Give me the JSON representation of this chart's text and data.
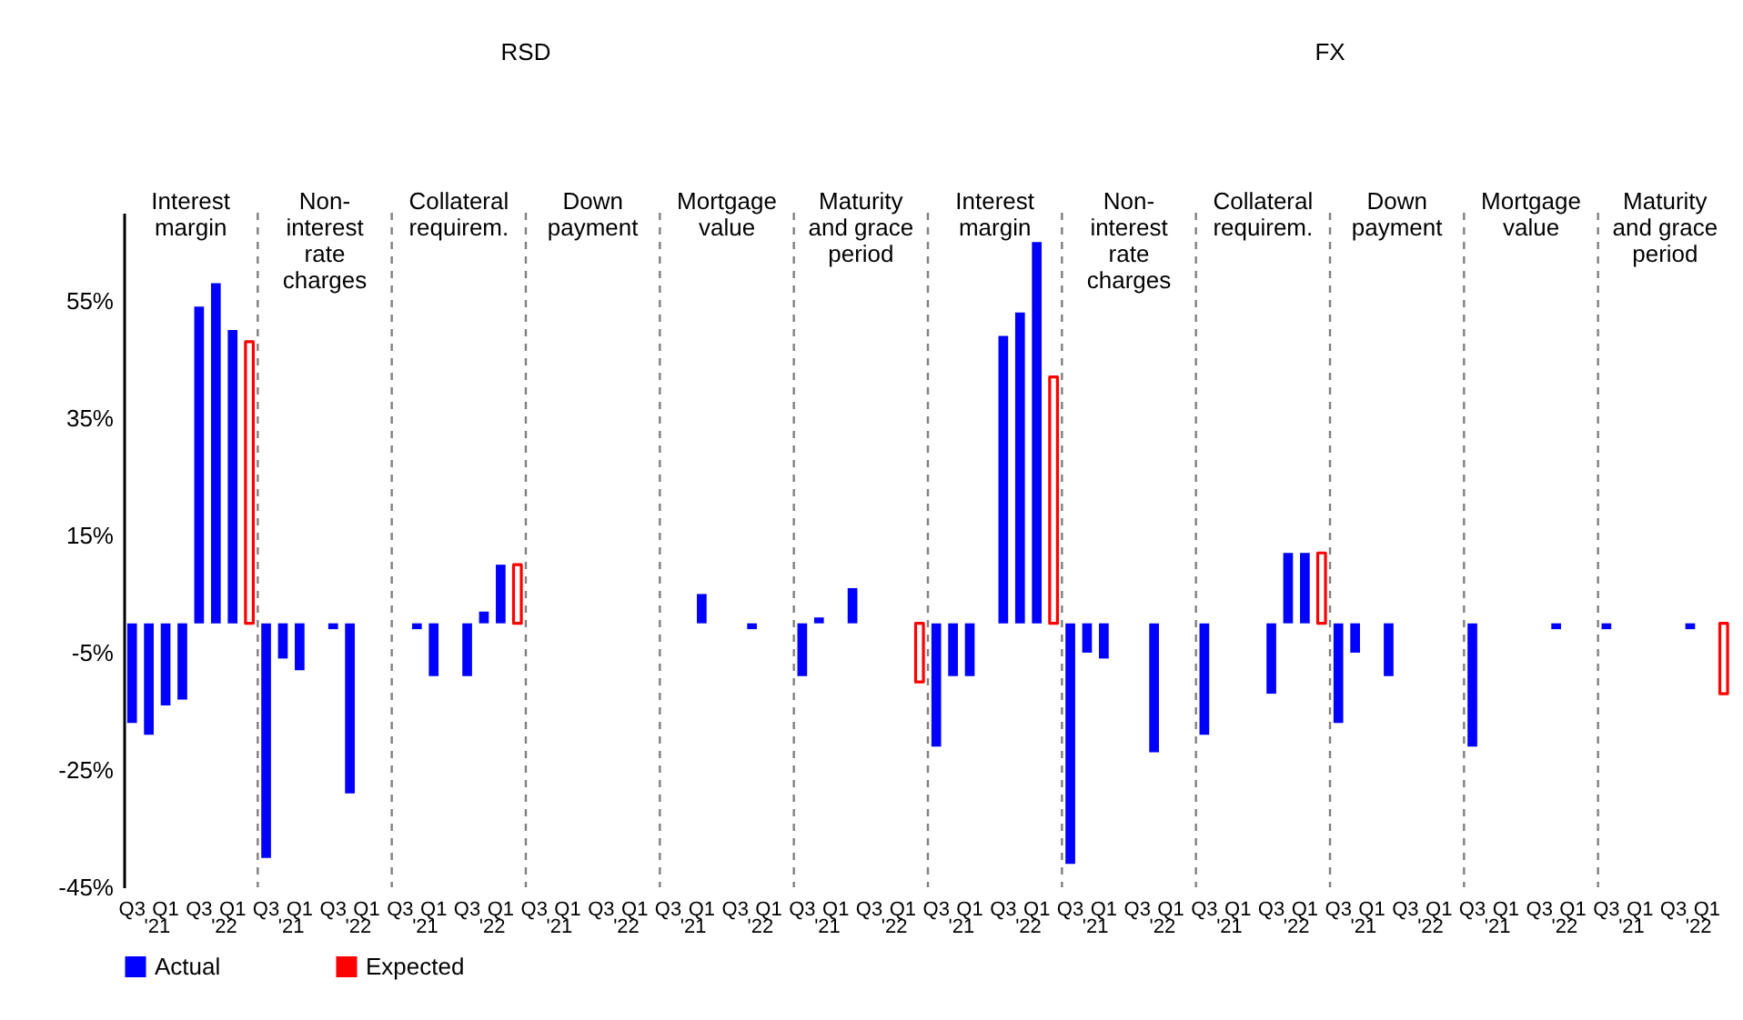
{
  "chart_data": {
    "type": "bar",
    "categories": [
      "Q3",
      null,
      "Q1",
      null,
      "Q3",
      null,
      "Q1",
      null,
      "Q3",
      null,
      "Q1",
      null,
      "Q3",
      null,
      "Q1",
      null,
      "Q3",
      null,
      "Q1",
      null,
      "Q3",
      null,
      "Q1",
      null,
      "Q3",
      null,
      "Q1",
      null,
      "Q3",
      null,
      "Q1",
      null,
      "Q3",
      null,
      "Q1",
      null,
      "Q3",
      null,
      "Q1",
      null,
      "Q3",
      null,
      "Q1",
      null,
      "Q3",
      null,
      "Q1",
      null,
      "Q3",
      null,
      "Q1",
      null,
      "Q3",
      null,
      "Q1",
      null,
      "Q3",
      null,
      "Q1",
      null,
      "Q3",
      null,
      "Q1",
      null,
      "Q3",
      null,
      "Q1",
      null,
      "Q3",
      null,
      "Q1",
      null,
      "Q3",
      null,
      "Q1",
      null,
      "Q3",
      null,
      "Q1",
      null,
      "Q3",
      null,
      "Q1",
      null,
      "Q3",
      null,
      "Q1",
      null,
      "Q3",
      null,
      "Q1",
      null,
      "Q3",
      null,
      "Q1",
      null
    ],
    "series": [
      {
        "name": "Actual",
        "color": "#0000ff",
        "values": [
          -17,
          -19,
          -14,
          -13,
          54,
          58,
          50,
          null,
          -40,
          -6,
          -8,
          null,
          -1,
          -29,
          null,
          null,
          null,
          -1,
          -9,
          null,
          -9,
          2,
          10,
          null,
          null,
          null,
          null,
          null,
          null,
          null,
          null,
          null,
          null,
          null,
          5,
          null,
          null,
          -1,
          null,
          null,
          -9,
          1,
          null,
          6,
          null,
          null,
          null,
          null,
          -21,
          -9,
          -9,
          null,
          49,
          53,
          65,
          null,
          -41,
          -5,
          -6,
          null,
          null,
          -22,
          null,
          null,
          -19,
          null,
          null,
          null,
          -12,
          12,
          12,
          null,
          -17,
          -5,
          null,
          -9,
          null,
          null,
          null,
          null,
          -21,
          null,
          null,
          null,
          null,
          -1,
          null,
          null,
          -1,
          null,
          null,
          null,
          null,
          -1,
          null,
          null
        ]
      },
      {
        "name": "Expected",
        "color": "#ff0000",
        "values": [
          null,
          null,
          null,
          null,
          null,
          null,
          null,
          48,
          null,
          null,
          null,
          null,
          null,
          null,
          null,
          null,
          null,
          null,
          null,
          null,
          null,
          null,
          null,
          10,
          null,
          null,
          null,
          null,
          null,
          null,
          null,
          null,
          null,
          null,
          null,
          null,
          null,
          null,
          null,
          null,
          null,
          null,
          null,
          null,
          null,
          null,
          null,
          -10,
          null,
          null,
          null,
          null,
          null,
          null,
          null,
          42,
          null,
          null,
          null,
          null,
          null,
          null,
          null,
          null,
          null,
          null,
          null,
          null,
          null,
          null,
          null,
          12,
          null,
          null,
          null,
          null,
          null,
          null,
          null,
          null,
          null,
          null,
          null,
          null,
          null,
          null,
          null,
          null,
          null,
          null,
          null,
          null,
          null,
          null,
          null,
          -12
        ]
      }
    ],
    "annotations": [
      "RSD",
      "FX",
      "Interest\nmargin",
      "Non-\ninterest\nrate\ncharges",
      "Collateral\nrequirem.",
      "Down\npayment",
      "Mortgage\nvalue",
      "Maturity\nand grace\nperiod",
      "Interest\nmargin",
      "Non-\ninterest\nrate\ncharges",
      "Collateral\nrequirem.",
      "Down\npayment",
      "Mortgage\nvalue",
      "Maturity\nand grace\nperiod",
      "'21",
      "'22",
      "'21",
      "'22",
      "'21",
      "'22",
      "'21",
      "'22",
      "'21",
      "'22",
      "'21",
      "'22",
      "'21",
      "'22",
      "'21",
      "'22",
      "'21",
      "'22",
      "'21",
      "'22",
      "'21",
      "'22",
      "'21",
      "'22"
    ],
    "ylim": [
      -45,
      70
    ],
    "yticks": [
      {
        "value": -45,
        "label": "-45%"
      },
      {
        "value": -25,
        "label": "-25%"
      },
      {
        "value": -5,
        "label": "-5%"
      },
      {
        "value": 15,
        "label": "15%"
      },
      {
        "value": 35,
        "label": "35%"
      },
      {
        "value": 55,
        "label": "55%"
      }
    ],
    "legend": "bottom"
  }
}
